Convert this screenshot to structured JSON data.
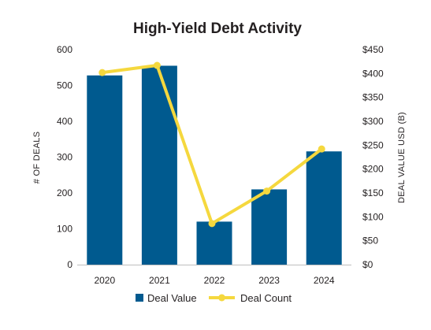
{
  "chart_data": {
    "type": "bar",
    "title": "High-Yield Debt Activity",
    "categories": [
      "2020",
      "2021",
      "2022",
      "2023",
      "2024"
    ],
    "y_left": {
      "label": "# OF DEALS",
      "range": [
        0,
        600
      ],
      "ticks": [
        "0",
        "100",
        "200",
        "300",
        "400",
        "500",
        "600"
      ]
    },
    "y_right": {
      "label": "DEAL VALUE USD (B)",
      "range": [
        0,
        450
      ],
      "ticks": [
        "$0",
        "$50",
        "$100",
        "$150",
        "$200",
        "$250",
        "$300",
        "$350",
        "$400",
        "$450"
      ]
    },
    "series": [
      {
        "name": "Deal Value",
        "type": "bar",
        "axis": "left",
        "color": "#005a8f",
        "values": [
          528,
          555,
          120,
          210,
          316
        ]
      },
      {
        "name": "Deal Count",
        "type": "line",
        "axis": "right",
        "color": "#f5d83e",
        "values": [
          402,
          417,
          86,
          154,
          242
        ]
      }
    ],
    "grid": false,
    "legend_position": "bottom"
  }
}
